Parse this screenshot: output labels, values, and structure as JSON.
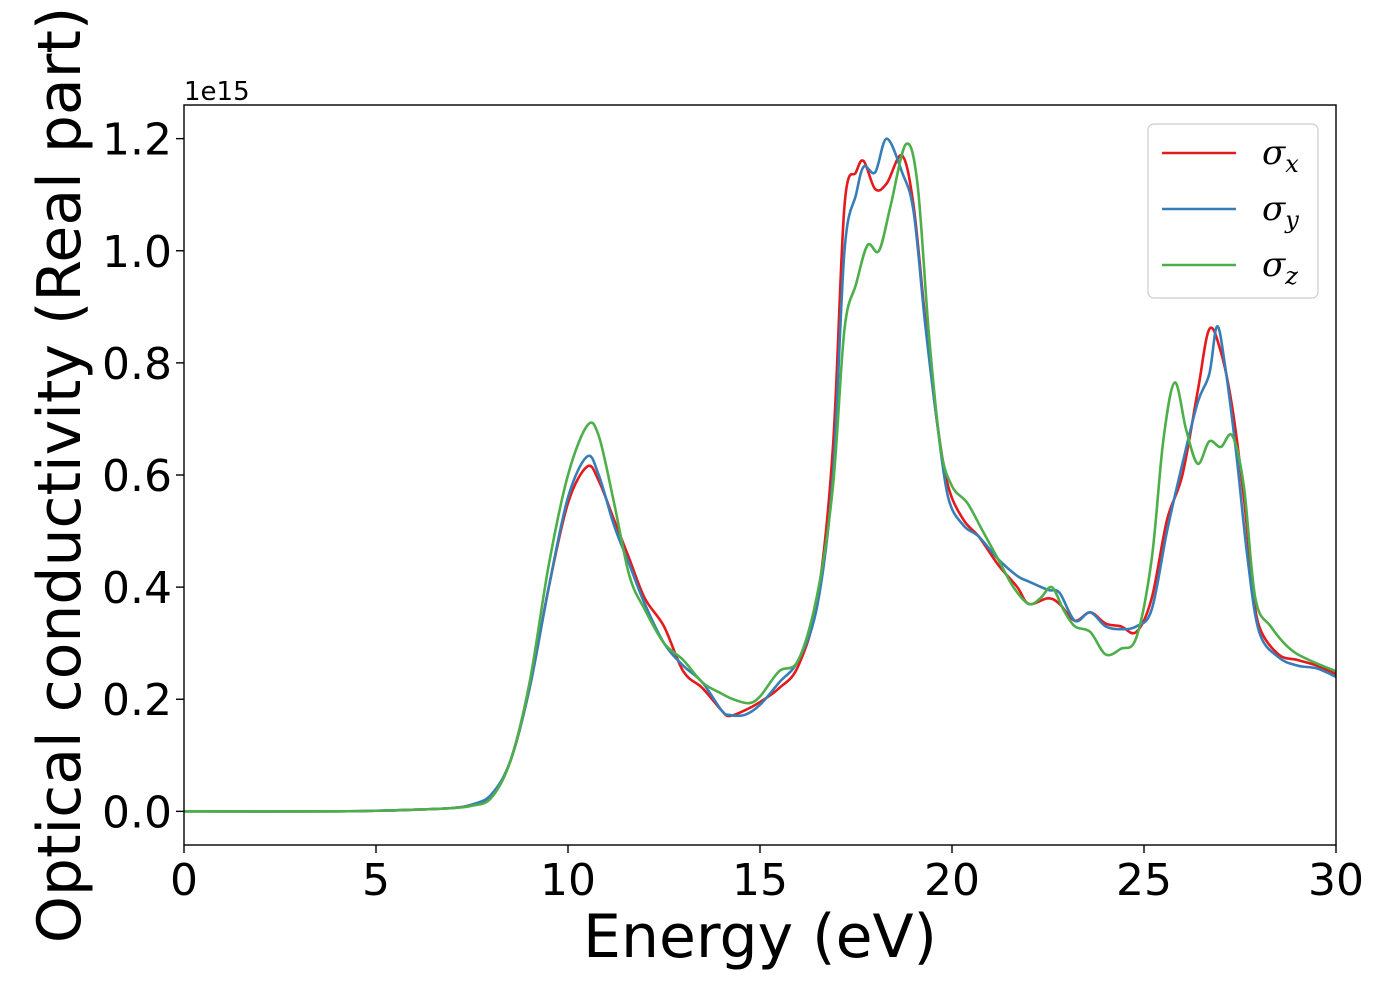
{
  "chart_data": {
    "type": "line",
    "xlabel": "Energy (eV)",
    "ylabel": "Optical conductivity (Real part)",
    "y_offset_text": "1e15",
    "xlim": [
      0,
      30
    ],
    "ylim": [
      -0.06,
      1.26
    ],
    "x_ticks": [
      0,
      5,
      10,
      15,
      20,
      25,
      30
    ],
    "y_ticks": [
      0.0,
      0.2,
      0.4,
      0.6,
      0.8,
      1.0,
      1.2
    ],
    "x_tick_labels": [
      "0",
      "5",
      "10",
      "15",
      "20",
      "25",
      "30"
    ],
    "y_tick_labels": [
      "0.0",
      "0.2",
      "0.4",
      "0.6",
      "0.8",
      "1.0",
      "1.2"
    ],
    "grid": false,
    "legend_position": "top-right",
    "series": [
      {
        "name": "σx",
        "symbol": "σ",
        "subscript": "x",
        "color": "#e41a1c",
        "points": [
          [
            0,
            0
          ],
          [
            4,
            0
          ],
          [
            6,
            0.003
          ],
          [
            7,
            0.006
          ],
          [
            7.5,
            0.012
          ],
          [
            8,
            0.028
          ],
          [
            8.5,
            0.09
          ],
          [
            9,
            0.22
          ],
          [
            9.5,
            0.4
          ],
          [
            10,
            0.55
          ],
          [
            10.5,
            0.615
          ],
          [
            10.8,
            0.59
          ],
          [
            11.2,
            0.52
          ],
          [
            11.6,
            0.45
          ],
          [
            12,
            0.38
          ],
          [
            12.5,
            0.33
          ],
          [
            13,
            0.25
          ],
          [
            13.5,
            0.22
          ],
          [
            14,
            0.18
          ],
          [
            14.2,
            0.17
          ],
          [
            14.6,
            0.18
          ],
          [
            15,
            0.195
          ],
          [
            15.5,
            0.22
          ],
          [
            16,
            0.26
          ],
          [
            16.5,
            0.38
          ],
          [
            16.9,
            0.65
          ],
          [
            17.2,
            1.08
          ],
          [
            17.5,
            1.14
          ],
          [
            17.7,
            1.16
          ],
          [
            18,
            1.11
          ],
          [
            18.3,
            1.12
          ],
          [
            18.7,
            1.17
          ],
          [
            19,
            1.08
          ],
          [
            19.3,
            0.88
          ],
          [
            19.6,
            0.7
          ],
          [
            19.9,
            0.58
          ],
          [
            20.3,
            0.52
          ],
          [
            20.7,
            0.49
          ],
          [
            21.2,
            0.44
          ],
          [
            21.7,
            0.4
          ],
          [
            22,
            0.37
          ],
          [
            22.5,
            0.38
          ],
          [
            22.8,
            0.37
          ],
          [
            23.2,
            0.34
          ],
          [
            23.6,
            0.355
          ],
          [
            24,
            0.335
          ],
          [
            24.4,
            0.33
          ],
          [
            24.8,
            0.32
          ],
          [
            25.2,
            0.38
          ],
          [
            25.6,
            0.52
          ],
          [
            26,
            0.6
          ],
          [
            26.4,
            0.75
          ],
          [
            26.7,
            0.86
          ],
          [
            27,
            0.82
          ],
          [
            27.3,
            0.72
          ],
          [
            27.6,
            0.56
          ],
          [
            27.8,
            0.42
          ],
          [
            28,
            0.33
          ],
          [
            28.5,
            0.28
          ],
          [
            29,
            0.27
          ],
          [
            29.5,
            0.26
          ],
          [
            30,
            0.245
          ]
        ]
      },
      {
        "name": "σy",
        "symbol": "σ",
        "subscript": "y",
        "color": "#377eb8",
        "points": [
          [
            0,
            0
          ],
          [
            4,
            0
          ],
          [
            6,
            0.003
          ],
          [
            7,
            0.006
          ],
          [
            7.5,
            0.012
          ],
          [
            8,
            0.03
          ],
          [
            8.5,
            0.09
          ],
          [
            9,
            0.22
          ],
          [
            9.5,
            0.4
          ],
          [
            10,
            0.56
          ],
          [
            10.5,
            0.633
          ],
          [
            10.8,
            0.6
          ],
          [
            11.2,
            0.51
          ],
          [
            11.6,
            0.44
          ],
          [
            12,
            0.37
          ],
          [
            12.5,
            0.3
          ],
          [
            13,
            0.26
          ],
          [
            13.5,
            0.23
          ],
          [
            14,
            0.18
          ],
          [
            14.2,
            0.172
          ],
          [
            14.6,
            0.172
          ],
          [
            15,
            0.19
          ],
          [
            15.5,
            0.23
          ],
          [
            16,
            0.27
          ],
          [
            16.5,
            0.37
          ],
          [
            16.9,
            0.6
          ],
          [
            17.2,
            1.0
          ],
          [
            17.5,
            1.1
          ],
          [
            17.7,
            1.15
          ],
          [
            18,
            1.14
          ],
          [
            18.3,
            1.2
          ],
          [
            18.7,
            1.14
          ],
          [
            19,
            1.07
          ],
          [
            19.3,
            0.87
          ],
          [
            19.6,
            0.7
          ],
          [
            19.9,
            0.56
          ],
          [
            20.3,
            0.51
          ],
          [
            20.7,
            0.49
          ],
          [
            21.2,
            0.45
          ],
          [
            21.7,
            0.42
          ],
          [
            22,
            0.41
          ],
          [
            22.5,
            0.395
          ],
          [
            22.8,
            0.39
          ],
          [
            23.2,
            0.34
          ],
          [
            23.6,
            0.355
          ],
          [
            24,
            0.33
          ],
          [
            24.4,
            0.325
          ],
          [
            24.8,
            0.33
          ],
          [
            25.2,
            0.36
          ],
          [
            25.6,
            0.5
          ],
          [
            26,
            0.62
          ],
          [
            26.4,
            0.73
          ],
          [
            26.7,
            0.78
          ],
          [
            26.9,
            0.865
          ],
          [
            27.1,
            0.8
          ],
          [
            27.4,
            0.64
          ],
          [
            27.7,
            0.45
          ],
          [
            28,
            0.32
          ],
          [
            28.5,
            0.275
          ],
          [
            29,
            0.26
          ],
          [
            29.5,
            0.255
          ],
          [
            30,
            0.24
          ]
        ]
      },
      {
        "name": "σz",
        "symbol": "σ",
        "subscript": "z",
        "color": "#4daf4a",
        "points": [
          [
            0,
            0
          ],
          [
            4,
            0
          ],
          [
            6,
            0.003
          ],
          [
            7,
            0.006
          ],
          [
            7.5,
            0.01
          ],
          [
            8,
            0.024
          ],
          [
            8.5,
            0.09
          ],
          [
            9,
            0.23
          ],
          [
            9.5,
            0.44
          ],
          [
            10,
            0.6
          ],
          [
            10.5,
            0.688
          ],
          [
            10.8,
            0.67
          ],
          [
            11.2,
            0.55
          ],
          [
            11.6,
            0.42
          ],
          [
            12,
            0.36
          ],
          [
            12.5,
            0.3
          ],
          [
            13,
            0.27
          ],
          [
            13.5,
            0.23
          ],
          [
            14,
            0.21
          ],
          [
            14.3,
            0.2
          ],
          [
            14.7,
            0.193
          ],
          [
            15,
            0.205
          ],
          [
            15.5,
            0.25
          ],
          [
            16,
            0.27
          ],
          [
            16.5,
            0.39
          ],
          [
            16.9,
            0.58
          ],
          [
            17.2,
            0.86
          ],
          [
            17.5,
            0.94
          ],
          [
            17.8,
            1.01
          ],
          [
            18.1,
            1.0
          ],
          [
            18.4,
            1.08
          ],
          [
            18.8,
            1.19
          ],
          [
            19.1,
            1.12
          ],
          [
            19.4,
            0.85
          ],
          [
            19.7,
            0.65
          ],
          [
            20,
            0.58
          ],
          [
            20.4,
            0.55
          ],
          [
            20.8,
            0.5
          ],
          [
            21.2,
            0.45
          ],
          [
            21.6,
            0.4
          ],
          [
            22,
            0.37
          ],
          [
            22.3,
            0.38
          ],
          [
            22.6,
            0.4
          ],
          [
            22.9,
            0.36
          ],
          [
            23.2,
            0.33
          ],
          [
            23.6,
            0.32
          ],
          [
            24,
            0.28
          ],
          [
            24.4,
            0.29
          ],
          [
            24.8,
            0.31
          ],
          [
            25.2,
            0.45
          ],
          [
            25.5,
            0.66
          ],
          [
            25.8,
            0.765
          ],
          [
            26.1,
            0.68
          ],
          [
            26.4,
            0.62
          ],
          [
            26.7,
            0.66
          ],
          [
            27,
            0.65
          ],
          [
            27.3,
            0.67
          ],
          [
            27.6,
            0.58
          ],
          [
            27.9,
            0.38
          ],
          [
            28.3,
            0.33
          ],
          [
            28.8,
            0.29
          ],
          [
            29.3,
            0.27
          ],
          [
            30,
            0.25
          ]
        ]
      }
    ]
  }
}
